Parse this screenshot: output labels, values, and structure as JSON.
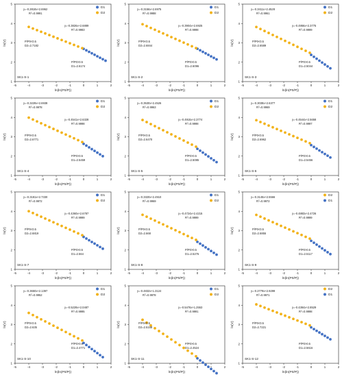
{
  "figure": {
    "x_axis_label": "ln(ln(P0/P))",
    "y_axis_label": "ln(V)",
    "x_ticks": [
      "-5",
      "-4",
      "-3",
      "-2",
      "-1",
      "0",
      "1",
      "2"
    ],
    "y_ticks": [
      "1",
      "2",
      "3",
      "4",
      "5"
    ]
  },
  "chart_data": [
    {
      "type": "scatter",
      "panel_label": "SK1-S-1",
      "legend_order": [
        "D1",
        "D2"
      ],
      "xlabel": "ln(ln(P0/P))",
      "ylabel": "ln(V)",
      "xlim": [
        -5,
        2
      ],
      "ylim": [
        1,
        5
      ],
      "series": [
        {
          "name": "D1",
          "color": "#4472c4",
          "fit": {
            "slope": -0.3826,
            "intercept": 2.6889
          },
          "x": [
            0.0,
            0.2,
            0.4,
            0.6,
            0.8,
            1.0,
            1.2,
            1.4,
            1.6
          ]
        },
        {
          "name": "D2",
          "color": "#f2b31a",
          "fit": {
            "slope": -0.2818,
            "intercept": 2.6962
          },
          "x": [
            -4.0,
            -3.7,
            -3.4,
            -3.1,
            -2.8,
            -2.5,
            -2.2,
            -1.9,
            -1.6,
            -1.3,
            -1.0,
            -0.7,
            -0.4,
            -0.1
          ]
        }
      ],
      "annotations": {
        "d2_equation": "y=-0.2818x+2.6962",
        "d2_r2": "R2=0.9991",
        "d1_equation": "y=-0.3826x+2.6889",
        "d1_r2": "R2=0.9983",
        "d2_cond": "P/P0<0.5",
        "d2_value": "D2=2.7182",
        "d1_cond": "P/P0>0.5",
        "d1_value": "D1=2.6174"
      }
    },
    {
      "type": "scatter",
      "panel_label": "SK1-S-2",
      "legend_order": [
        "D1",
        "D2"
      ],
      "xlabel": "ln(ln(P0/P))",
      "ylabel": "ln(V)",
      "xlim": [
        -5,
        2
      ],
      "ylim": [
        1,
        5
      ],
      "series": [
        {
          "name": "D1",
          "color": "#4472c4",
          "fit": {
            "slope": -0.3904,
            "intercept": 2.6925
          },
          "x": [
            0.0,
            0.2,
            0.4,
            0.6,
            0.8,
            1.0,
            1.2,
            1.4
          ]
        },
        {
          "name": "D2",
          "color": "#f2b31a",
          "fit": {
            "slope": -0.3156,
            "intercept": 2.6975
          },
          "x": [
            -4.0,
            -3.7,
            -3.4,
            -3.1,
            -2.8,
            -2.5,
            -2.2,
            -1.9,
            -1.6,
            -1.3,
            -1.0,
            -0.7,
            -0.4,
            -0.1
          ]
        }
      ],
      "annotations": {
        "d2_equation": "y=-0.3156x+2.6975",
        "d2_r2": "R2=0.9988",
        "d1_equation": "y=-0.3904x+2.6925",
        "d1_r2": "R2=0.9998",
        "d2_cond": "P/P0<0.5",
        "d2_value": "D2=2.6844",
        "d1_cond": "P/P0>0.5",
        "d1_value": "D1=2.6096"
      }
    },
    {
      "type": "scatter",
      "panel_label": "SK1-S-3",
      "legend_order": [
        "D1",
        "D2"
      ],
      "xlabel": "ln(ln(P0/P))",
      "ylabel": "ln(V)",
      "xlim": [
        -5,
        2
      ],
      "ylim": [
        1,
        5
      ],
      "series": [
        {
          "name": "D1",
          "color": "#4472c4",
          "fit": {
            "slope": -0.4956,
            "intercept": 2.3775
          },
          "x": [
            0.0,
            0.2,
            0.4,
            0.6,
            0.8,
            1.0,
            1.2,
            1.4
          ]
        },
        {
          "name": "D2",
          "color": "#f2b31a",
          "fit": {
            "slope": -0.3411,
            "intercept": 2.4528
          },
          "x": [
            -4.0,
            -3.7,
            -3.4,
            -3.1,
            -2.8,
            -2.5,
            -2.2,
            -1.9,
            -1.6,
            -1.3,
            -1.0,
            -0.7,
            -0.4,
            -0.1
          ]
        }
      ],
      "annotations": {
        "d2_equation": "y=-0.3411x+2.4528",
        "d2_r2": "R2=0.9961",
        "d1_equation": "y=-0.4956x+2.3775",
        "d1_r2": "R2=0.9999",
        "d2_cond": "P/P0<0.5",
        "d2_value": "D2=2.6589",
        "d1_cond": "P/P0>0.5",
        "d1_value": "D1=2.5044"
      }
    },
    {
      "type": "scatter",
      "panel_label": "SK1-S-4",
      "legend_order": [
        "D1",
        "D2"
      ],
      "xlabel": "ln(ln(P0/P))",
      "ylabel": "ln(V)",
      "xlim": [
        -5,
        2
      ],
      "ylim": [
        1,
        5
      ],
      "series": [
        {
          "name": "D1",
          "color": "#4472c4",
          "fit": {
            "slope": -0.4541,
            "intercept": 2.6328
          },
          "x": [
            0.0,
            0.2,
            0.4,
            0.6,
            0.8,
            1.0,
            1.2,
            1.4
          ]
        },
        {
          "name": "D2",
          "color": "#f2b31a",
          "fit": {
            "slope": -0.3229,
            "intercept": 2.6938
          },
          "x": [
            -4.0,
            -3.7,
            -3.4,
            -3.1,
            -2.8,
            -2.5,
            -2.2,
            -1.9,
            -1.6,
            -1.3,
            -1.0,
            -0.7,
            -0.4,
            -0.1
          ]
        }
      ],
      "annotations": {
        "d2_equation": "y=-0.3229x+2.6938",
        "d2_r2": "R2=0.9978",
        "d1_equation": "y=-0.4541x+2.6328",
        "d1_r2": "R2=0.9998",
        "d2_cond": "P/P0<0.5",
        "d2_value": "D2=2.6771",
        "d1_cond": "P/P0>0.5",
        "d1_value": "D1=2.5459"
      }
    },
    {
      "type": "scatter",
      "panel_label": "SK1-S-5",
      "legend_order": [
        "D1",
        "D2"
      ],
      "xlabel": "ln(ln(P0/P))",
      "ylabel": "ln(V)",
      "xlim": [
        -5,
        2
      ],
      "ylim": [
        1,
        5
      ],
      "series": [
        {
          "name": "D1",
          "color": "#4472c4",
          "fit": {
            "slope": -0.4915,
            "intercept": 2.3774
          },
          "x": [
            0.0,
            0.2,
            0.4,
            0.6,
            0.8,
            1.0,
            1.2,
            1.4
          ]
        },
        {
          "name": "D2",
          "color": "#f2b31a",
          "fit": {
            "slope": -0.353,
            "intercept": 2.4526
          },
          "x": [
            -4.0,
            -3.7,
            -3.4,
            -3.1,
            -2.8,
            -2.5,
            -2.2,
            -1.9,
            -1.6,
            -1.3,
            -1.0,
            -0.7,
            -0.4,
            -0.1
          ]
        }
      ],
      "annotations": {
        "d2_equation": "y=-0.3530x+2.4526",
        "d2_r2": "R2=0.9963",
        "d1_equation": "y=-0.4915x+2.3774",
        "d1_r2": "R2=0.9998",
        "d2_cond": "P/P0<0.5",
        "d2_value": "D2=2.6470",
        "d1_cond": "P/P0>0.5",
        "d1_value": "D1=2.5085"
      }
    },
    {
      "type": "scatter",
      "panel_label": "SK1-S-6",
      "legend_order": [
        "D1",
        "D2"
      ],
      "xlabel": "ln(ln(P0/P))",
      "ylabel": "ln(V)",
      "xlim": [
        -5,
        2
      ],
      "ylim": [
        1,
        5
      ],
      "series": [
        {
          "name": "D1",
          "color": "#4472c4",
          "fit": {
            "slope": -0.4544,
            "intercept": 2.5658
          },
          "x": [
            0.0,
            0.2,
            0.4,
            0.6,
            0.8,
            1.0,
            1.2,
            1.4
          ]
        },
        {
          "name": "D2",
          "color": "#f2b31a",
          "fit": {
            "slope": -0.3038,
            "intercept": 2.6377
          },
          "x": [
            -4.0,
            -3.7,
            -3.4,
            -3.1,
            -2.8,
            -2.5,
            -2.2,
            -1.9,
            -1.6,
            -1.3,
            -1.0,
            -0.7,
            -0.4,
            -0.1
          ]
        }
      ],
      "annotations": {
        "d2_equation": "y=-0.3038x+2.6377",
        "d2_r2": "R2=0.9969",
        "d1_equation": "y=-0.4544x+2.5658",
        "d1_r2": "R2=0.9997",
        "d2_cond": "P/P0<0.5",
        "d2_value": "D2=2.6962",
        "d1_cond": "P/P0>0.5",
        "d1_value": "D1=2.5456"
      }
    },
    {
      "type": "scatter",
      "panel_label": "SK1-S-7",
      "legend_order": [
        "D1",
        "D2"
      ],
      "xlabel": "ln(ln(P0/P))",
      "ylabel": "ln(V)",
      "xlim": [
        -5,
        2
      ],
      "ylim": [
        1,
        5
      ],
      "series": [
        {
          "name": "D1",
          "color": "#4472c4",
          "fit": {
            "slope": -0.436,
            "intercept": 2.6787
          },
          "x": [
            0.0,
            0.2,
            0.4,
            0.6,
            0.8,
            1.0,
            1.2,
            1.4
          ]
        },
        {
          "name": "D2",
          "color": "#f2b31a",
          "fit": {
            "slope": -0.3181,
            "intercept": 2.733
          },
          "x": [
            -4.0,
            -3.7,
            -3.4,
            -3.1,
            -2.8,
            -2.5,
            -2.2,
            -1.9,
            -1.6,
            -1.3,
            -1.0,
            -0.7,
            -0.4,
            -0.1
          ]
        }
      ],
      "annotations": {
        "d2_equation": "y=-0.3181x+2.7330",
        "d2_r2": "R2=0.9972",
        "d1_equation": "y=-0.4360x+2.6787",
        "d1_r2": "R2=0.9999",
        "d2_cond": "P/P0<0.5",
        "d2_value": "D2=2.6819",
        "d1_cond": "P/P0>0.5",
        "d1_value": "D1=2.564"
      }
    },
    {
      "type": "scatter",
      "panel_label": "SK1-S-8",
      "legend_order": [
        "D1",
        "D2"
      ],
      "xlabel": "ln(ln(P0/P))",
      "ylabel": "ln(V)",
      "xlim": [
        -5,
        2
      ],
      "ylim": [
        1,
        5
      ],
      "series": [
        {
          "name": "D1",
          "color": "#4472c4",
          "fit": {
            "slope": -0.4724,
            "intercept": 2.4215
          },
          "x": [
            0.0,
            0.2,
            0.4,
            0.6,
            0.8,
            1.0,
            1.2,
            1.4
          ]
        },
        {
          "name": "D2",
          "color": "#f2b31a",
          "fit": {
            "slope": -0.332,
            "intercept": 2.491
          },
          "x": [
            -4.0,
            -3.7,
            -3.4,
            -3.1,
            -2.8,
            -2.5,
            -2.2,
            -1.9,
            -1.6,
            -1.3,
            -1.0,
            -0.7,
            -0.4,
            -0.1
          ]
        }
      ],
      "annotations": {
        "d2_equation": "y=-0.3320x+2.4910",
        "d2_r2": "R2=0.9969",
        "d1_equation": "y=-0.4724x+2.4215",
        "d1_r2": "R2=0.9999",
        "d2_cond": "P/P0<0.5",
        "d2_value": "D2=2.668",
        "d1_cond": "P/P0>0.5",
        "d1_value": "D1=2.5276"
      }
    },
    {
      "type": "scatter",
      "panel_label": "SK1-S-9",
      "legend_order": [
        "D2",
        "D1"
      ],
      "xlabel": "ln(ln(P0/P))",
      "ylabel": "ln(V)",
      "xlim": [
        -5,
        2
      ],
      "ylim": [
        1,
        5
      ],
      "series": [
        {
          "name": "D1",
          "color": "#4472c4",
          "fit": {
            "slope": -0.4883,
            "intercept": 2.4726
          },
          "x": [
            0.0,
            0.2,
            0.4,
            0.6,
            0.8,
            1.0,
            1.2,
            1.4
          ]
        },
        {
          "name": "D2",
          "color": "#f2b31a",
          "fit": {
            "slope": -0.3145,
            "intercept": 2.5566
          },
          "x": [
            -4.0,
            -3.7,
            -3.4,
            -3.1,
            -2.8,
            -2.5,
            -2.2,
            -1.9,
            -1.6,
            -1.3,
            -1.0,
            -0.7,
            -0.4,
            -0.1
          ]
        }
      ],
      "annotations": {
        "d2_equation": "y=-0.3145x+2.5566",
        "d2_r2": "R2=0.9972",
        "d1_equation": "y=-0.4883x+2.4726",
        "d1_r2": "R2=0.9999",
        "d2_cond": "P/P0<0.5",
        "d2_value": "D2=2.6855",
        "d1_cond": "P/P0>0.5",
        "d1_value": "D1=2.5117"
      }
    },
    {
      "type": "scatter",
      "panel_label": "SK1-S-10",
      "legend_order": [
        "D1",
        "D2"
      ],
      "xlabel": "ln(ln(P0/P))",
      "ylabel": "ln(V)",
      "xlim": [
        -5,
        2
      ],
      "ylim": [
        1,
        5
      ],
      "series": [
        {
          "name": "D1",
          "color": "#4472c4",
          "fit": {
            "slope": -0.5229,
            "intercept": 2.0487
          },
          "x": [
            0.0,
            0.2,
            0.4,
            0.6,
            0.8,
            1.0,
            1.2,
            1.4
          ]
        },
        {
          "name": "D2",
          "color": "#f2b31a",
          "fit": {
            "slope": -0.365,
            "intercept": 2.1397
          },
          "x": [
            -4.0,
            -3.7,
            -3.4,
            -3.1,
            -2.8,
            -2.5,
            -2.2,
            -1.9,
            -1.6,
            -1.3,
            -1.0,
            -0.7,
            -0.4,
            -0.1
          ]
        }
      ],
      "annotations": {
        "d2_equation": "y=-0.3650x+2.1397",
        "d2_r2": "R2=0.9952",
        "d1_equation": "y=-0.5229x+2.0487",
        "d1_r2": "R2=0.9995",
        "d2_cond": "P/P0<0.5",
        "d2_value": "D2=2.635",
        "d1_cond": "P/P0>0.5",
        "d1_value": "D1=2.4771"
      }
    },
    {
      "type": "scatter",
      "panel_label": "SK1-S-11",
      "legend_order": [
        "D1",
        "D2"
      ],
      "xlabel": "ln(ln(P0/P))",
      "ylabel": "ln(V)",
      "xlim": [
        -5,
        2
      ],
      "ylim": [
        1,
        5
      ],
      "series": [
        {
          "name": "D1",
          "color": "#4472c4",
          "fit": {
            "slope": -0.5476,
            "intercept": 1.2553
          },
          "x": [
            0.0,
            0.2,
            0.4,
            0.6,
            0.8,
            1.0,
            1.2,
            1.4
          ]
        },
        {
          "name": "D2",
          "color": "#f2b31a",
          "fit": {
            "slope": -0.4832,
            "intercept": 1.3124
          },
          "x": [
            -4.0,
            -3.7,
            -3.4,
            -3.1,
            -2.8,
            -2.5,
            -2.2,
            -1.9,
            -1.6,
            -1.3,
            -1.0,
            -0.7,
            -0.4,
            -0.1
          ]
        }
      ],
      "annotations": {
        "d2_equation": "y=-0.4832x+1.3124",
        "d2_r2": "R2=0.9978",
        "d1_equation": "y=-0.5476x+1.2553",
        "d1_r2": "R2=0.9991",
        "d2_cond": "P/P0<0.5",
        "d2_value": "D2=2.5168",
        "d1_cond": "P/P0>0.5",
        "d1_value": "D1=2.4524"
      }
    },
    {
      "type": "scatter",
      "panel_label": "SK1-S-12",
      "legend_order": [
        "D2",
        "D1"
      ],
      "xlabel": "ln(ln(P0/P))",
      "ylabel": "ln(V)",
      "xlim": [
        -5,
        2
      ],
      "ylim": [
        1,
        5
      ],
      "series": [
        {
          "name": "D1",
          "color": "#4472c4",
          "fit": {
            "slope": -0.4384,
            "intercept": 2.8529
          },
          "x": [
            0.0,
            0.2,
            0.4,
            0.6,
            0.8,
            1.0,
            1.2,
            1.4
          ]
        },
        {
          "name": "D2",
          "color": "#f2b31a",
          "fit": {
            "slope": -0.2779,
            "intercept": 2.9299
          },
          "x": [
            -4.0,
            -3.7,
            -3.4,
            -3.1,
            -2.8,
            -2.5,
            -2.2,
            -1.9,
            -1.6,
            -1.3,
            -1.0,
            -0.7,
            -0.4,
            -0.1
          ]
        }
      ],
      "annotations": {
        "d2_equation": "y=-0.2779x+2.9299",
        "d2_r2": "R2=0.9971",
        "d1_equation": "y=-0.4384x+2.8529",
        "d1_r2": "R2=0.9998",
        "d2_cond": "P/P0<0.5",
        "d2_value": "D2=2.7221",
        "d1_cond": "P/P0>0.5",
        "d1_value": "D1=2.5616"
      }
    }
  ]
}
